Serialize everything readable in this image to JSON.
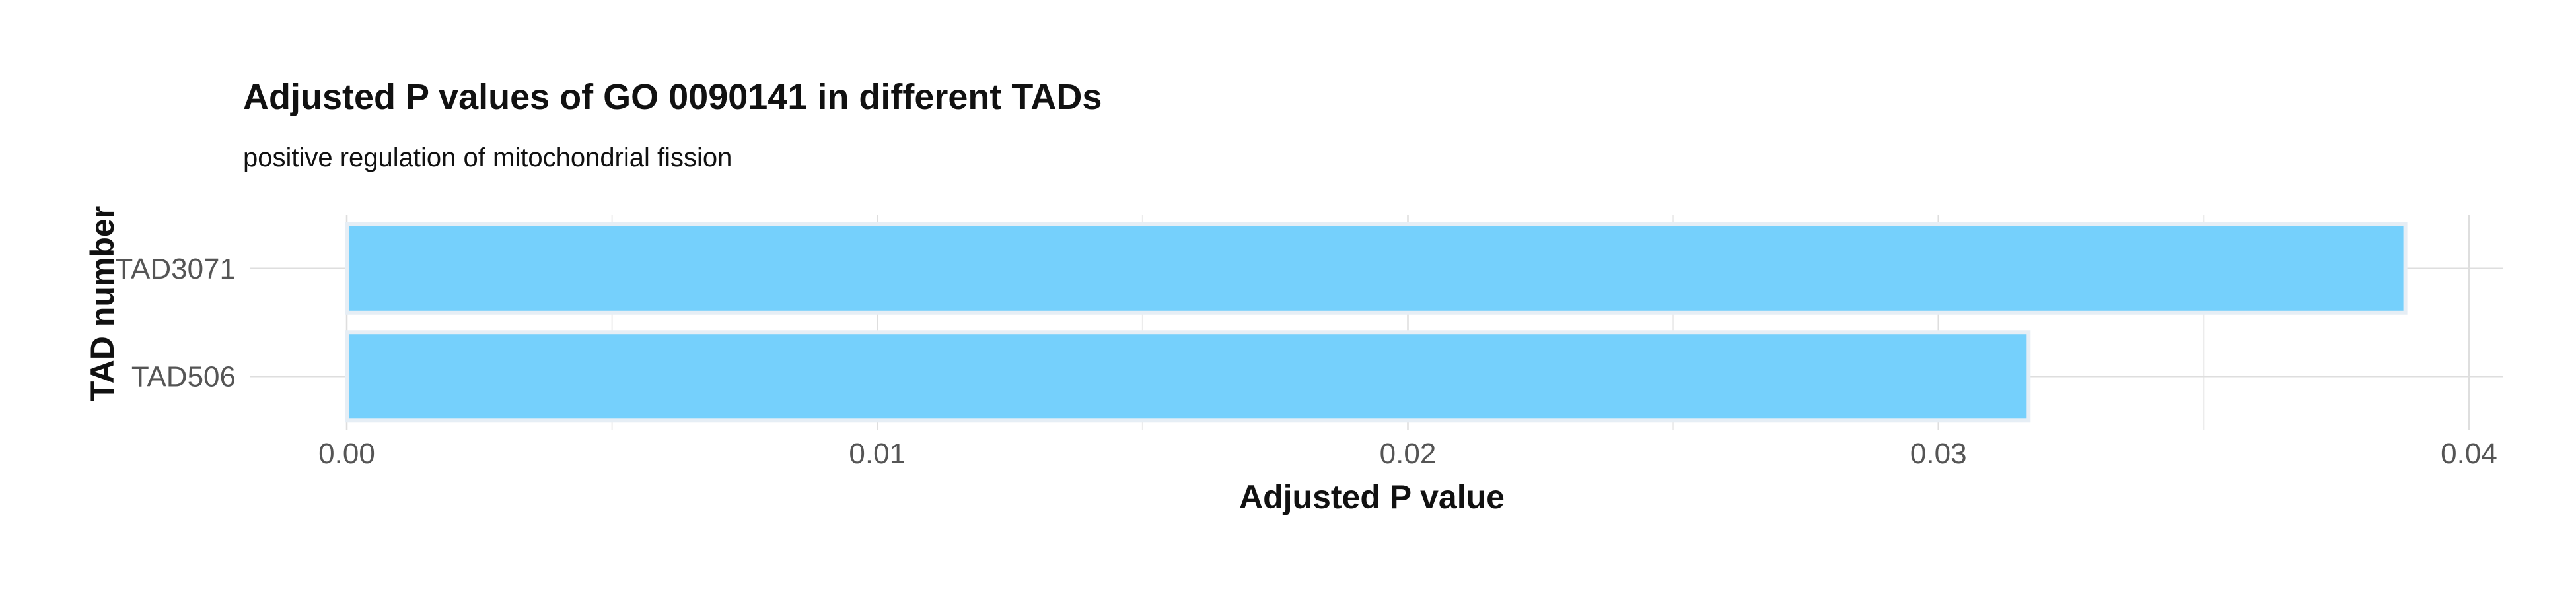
{
  "chart_data": {
    "type": "bar",
    "orientation": "horizontal",
    "title": "Adjusted P values of GO 0090141 in different TADs",
    "subtitle": "positive regulation of mitochondrial fission",
    "xlabel": "Adjusted P value",
    "ylabel": "TAD number",
    "categories": [
      "TAD3071",
      "TAD506"
    ],
    "values": [
      0.0388,
      0.0317
    ],
    "xlim": [
      0,
      0.04
    ],
    "xticks": [
      0,
      0.01,
      0.02,
      0.03,
      0.04
    ],
    "xtick_labels": [
      "0.00",
      "0.01",
      "0.02",
      "0.03",
      "0.04"
    ],
    "grid": true,
    "legend": "none",
    "bar_color": "#75D0FC"
  }
}
